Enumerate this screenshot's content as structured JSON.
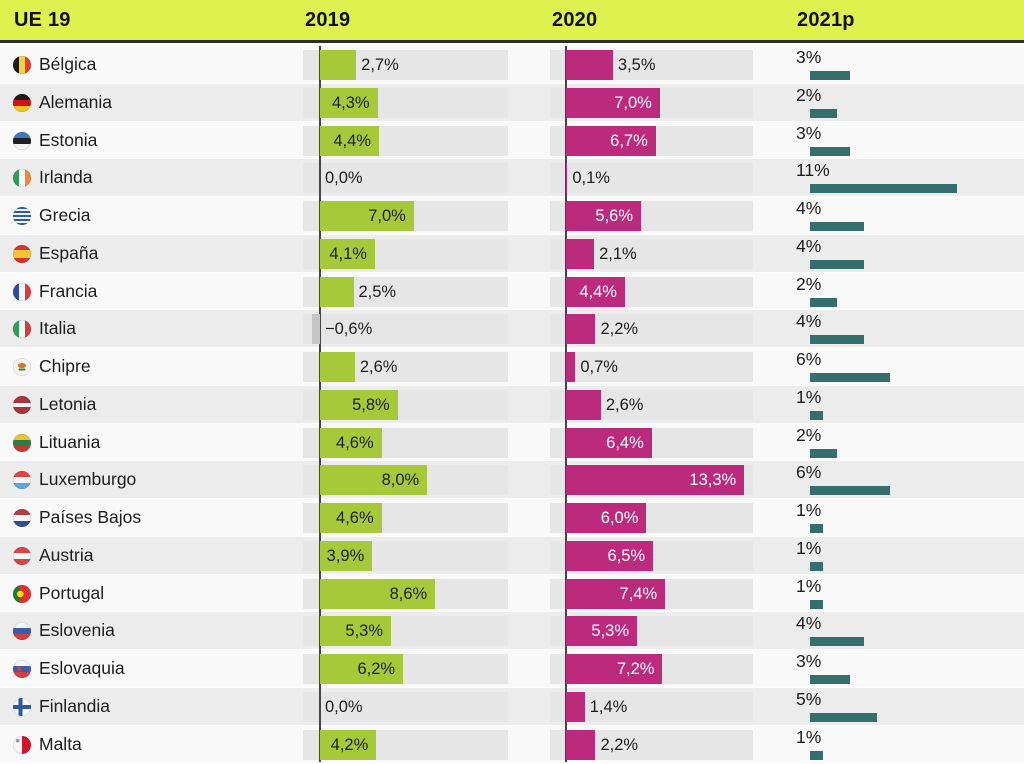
{
  "header": {
    "col_country": "UE 19",
    "col_2019": "2019",
    "col_2020": "2020",
    "col_2021": "2021p"
  },
  "colors": {
    "header_bg": "#ddf24f",
    "bar_2019": "#a6c93a",
    "bar_2020": "#bc2a7e",
    "bar_2021": "#366e6e",
    "bar_negative": "#c6c6c6",
    "track": "#e6e6e6",
    "row_odd": "#f9f9f9",
    "row_even": "#ececec"
  },
  "chart_data": {
    "type": "bar",
    "orientation": "horizontal",
    "title": "UE 19",
    "legend_position": "column-headers",
    "grid": false,
    "x_scale_pct_per_13px": 1,
    "categories": [
      "Bélgica",
      "Alemania",
      "Estonia",
      "Irlanda",
      "Grecia",
      "España",
      "Francia",
      "Italia",
      "Chipre",
      "Letonia",
      "Lituania",
      "Luxemburgo",
      "Países Bajos",
      "Austria",
      "Portugal",
      "Eslovenia",
      "Eslovaquia",
      "Finlandia",
      "Malta"
    ],
    "flags": [
      "be",
      "de",
      "ee",
      "ie",
      "gr",
      "es",
      "fr",
      "it",
      "cy",
      "lv",
      "lt",
      "lu",
      "nl",
      "at",
      "pt",
      "si",
      "sk",
      "fi",
      "mt"
    ],
    "series": [
      {
        "name": "2019",
        "color": "#a6c93a",
        "axis_range": [
          -1.3,
          14.1
        ],
        "values": [
          2.7,
          4.3,
          4.4,
          0.0,
          7.0,
          4.1,
          2.5,
          -0.6,
          2.6,
          5.8,
          4.6,
          8.0,
          4.6,
          3.9,
          8.6,
          5.3,
          6.2,
          0.0,
          4.2
        ],
        "labels": [
          "2,7%",
          "4,3%",
          "4,4%",
          "0,0%",
          "7,0%",
          "4,1%",
          "2,5%",
          "−0,6%",
          "2,6%",
          "5,8%",
          "4,6%",
          "8,0%",
          "4,6%",
          "3,9%",
          "8,6%",
          "5,3%",
          "6,2%",
          "0,0%",
          "4,2%"
        ]
      },
      {
        "name": "2020",
        "color": "#bc2a7e",
        "axis_range": [
          -1.2,
          14.0
        ],
        "values": [
          3.5,
          7.0,
          6.7,
          0.1,
          5.6,
          2.1,
          4.4,
          2.2,
          0.7,
          2.6,
          6.4,
          13.3,
          6.0,
          6.5,
          7.4,
          5.3,
          7.2,
          1.4,
          2.2
        ],
        "labels": [
          "3,5%",
          "7,0%",
          "6,7%",
          "0,1%",
          "5,6%",
          "2,1%",
          "4,4%",
          "2,2%",
          "0,7%",
          "2,6%",
          "6,4%",
          "13,3%",
          "6,0%",
          "6,5%",
          "7,4%",
          "5,3%",
          "7,2%",
          "1,4%",
          "2,2%"
        ]
      },
      {
        "name": "2021p",
        "color": "#366e6e",
        "values": [
          3,
          2,
          3,
          11,
          4,
          4,
          2,
          4,
          6,
          1,
          2,
          6,
          1,
          1,
          1,
          4,
          3,
          5,
          1
        ],
        "labels": [
          "3%",
          "2%",
          "3%",
          "11%",
          "4%",
          "4%",
          "2%",
          "4%",
          "6%",
          "1%",
          "2%",
          "6%",
          "1%",
          "1%",
          "1%",
          "4%",
          "3%",
          "5%",
          "1%"
        ]
      }
    ]
  }
}
